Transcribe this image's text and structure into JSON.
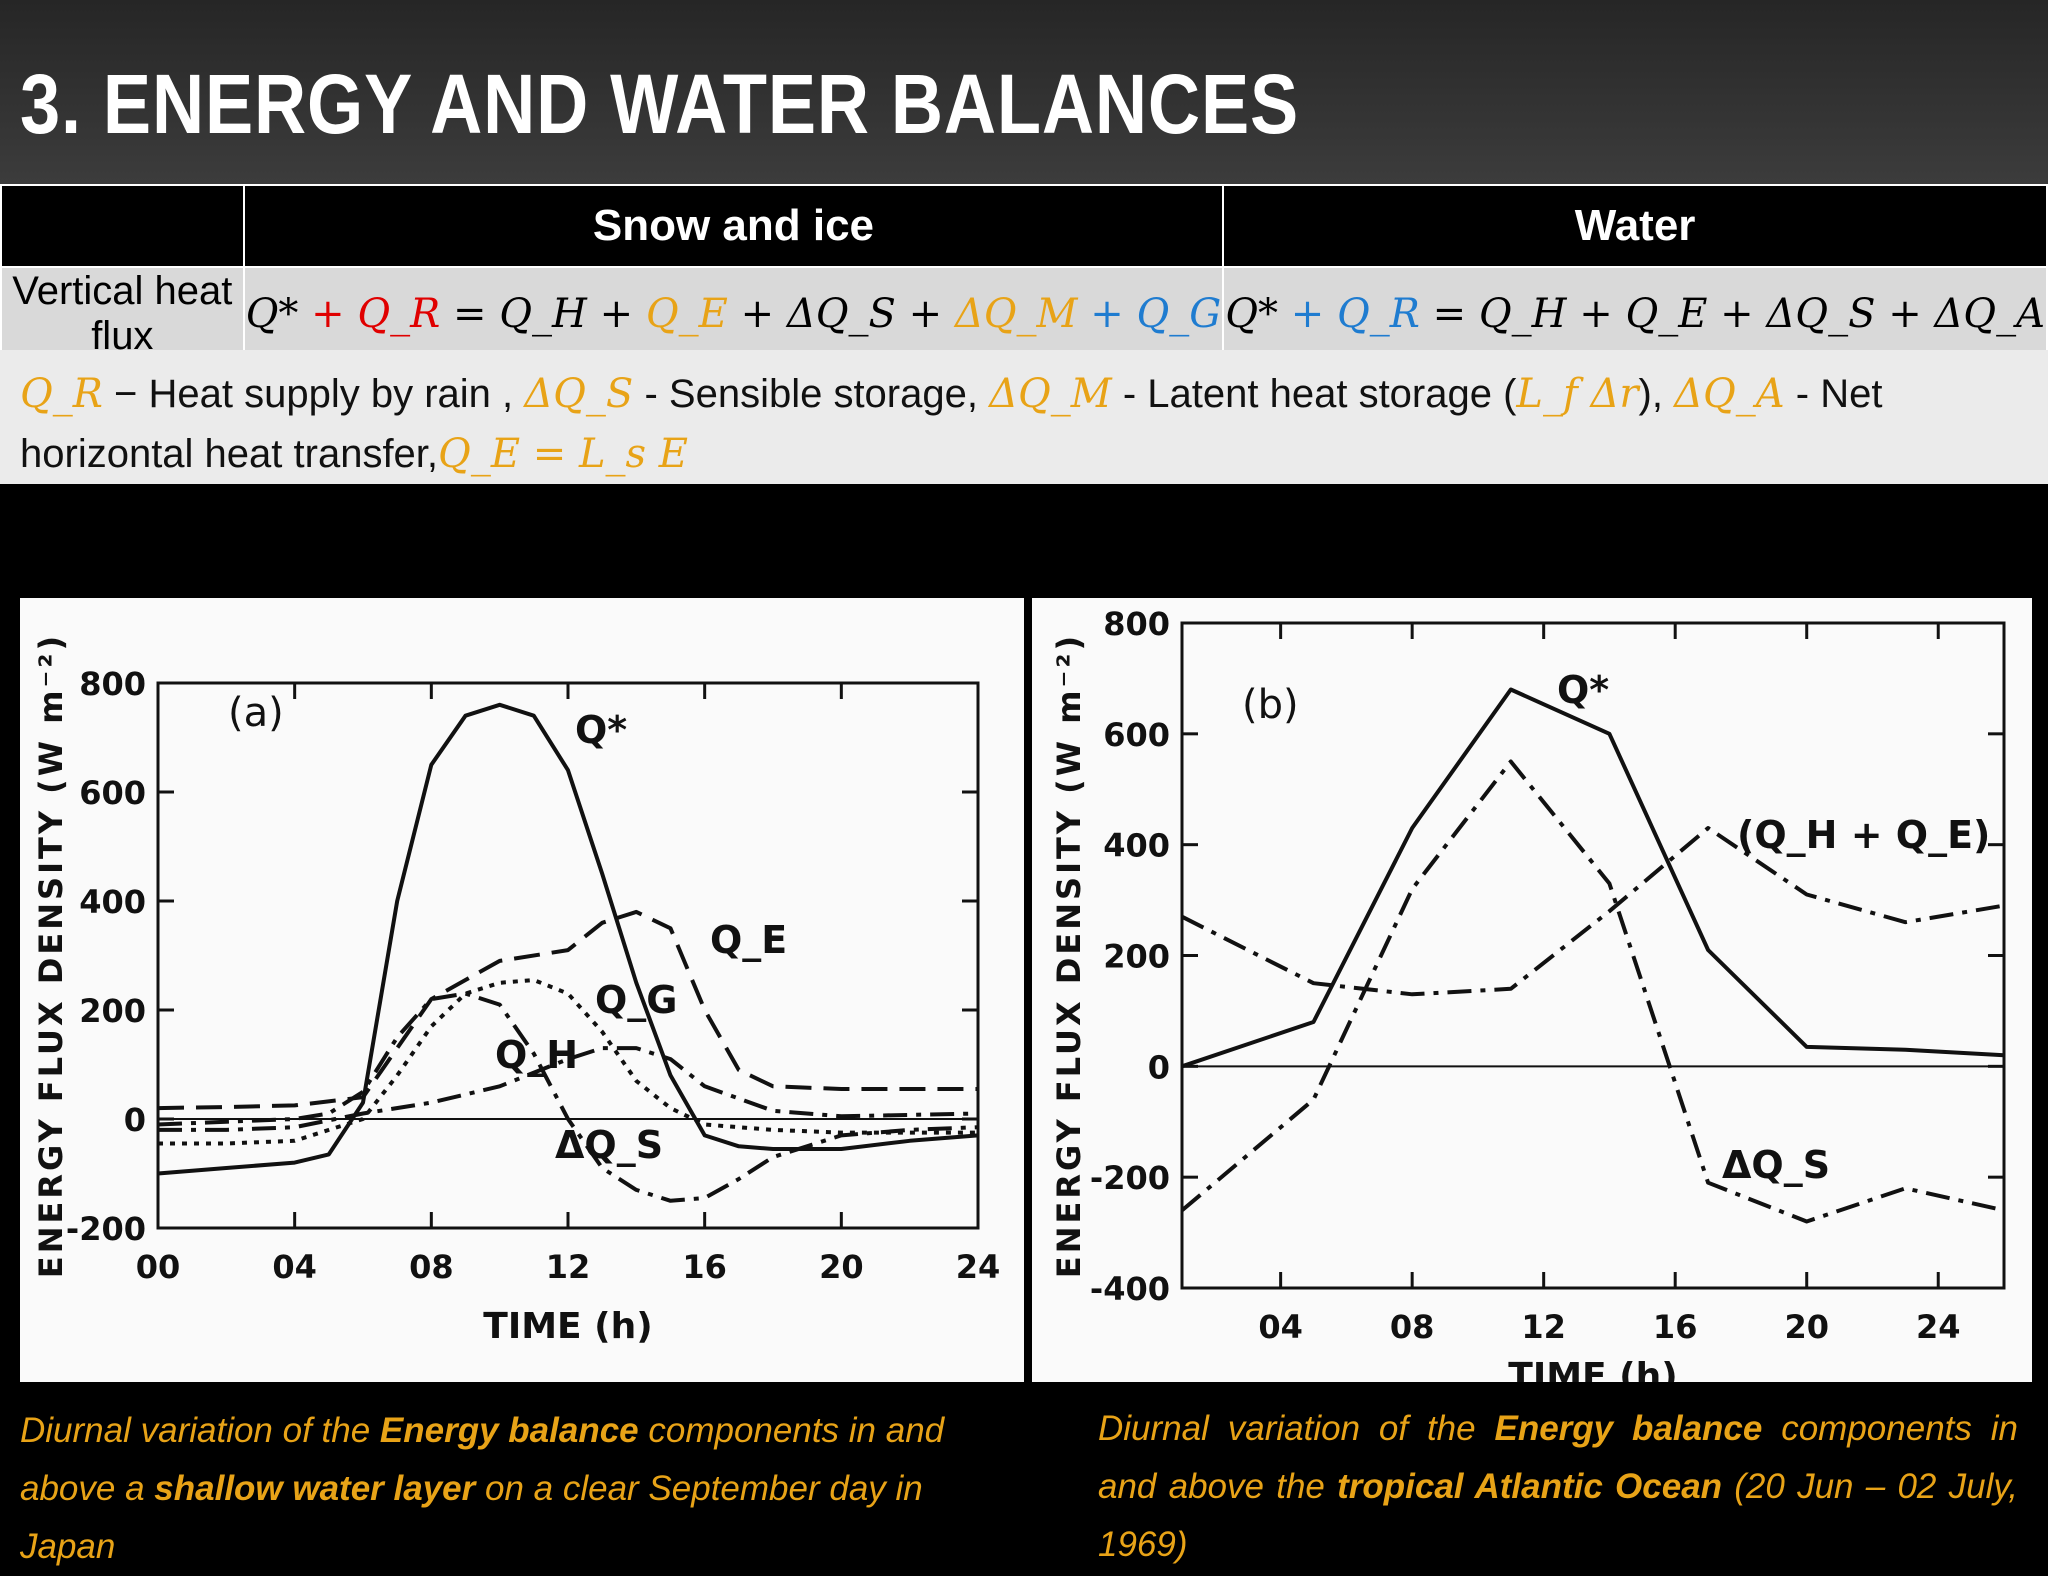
{
  "header": {
    "title": "3. ENERGY AND WATER BALANCES"
  },
  "table": {
    "col1": "Snow and ice",
    "col2": "Water",
    "row_label": "Vertical heat flux",
    "eq1": {
      "p1": "Q*",
      "p2": " + ",
      "p3": "Q_R",
      "p4": " = Q_H + ",
      "p5": "Q_E",
      "p6": " + ΔQ_S + ",
      "p7": "ΔQ_M",
      "p8": " + ",
      "p9": "Q_G"
    },
    "eq2": {
      "p1": "Q*",
      "p2": " + ",
      "p3": "Q_R",
      "p4": " = Q_H + Q_E + ΔQ_S + ΔQ_A"
    }
  },
  "legend": {
    "qr": "Q_R",
    "qr_text": " − Heat supply by rain ,   ",
    "dqs": "ΔQ_S",
    "dqs_text": " - Sensible storage, ",
    "dqm": "ΔQ_M",
    "dqm_text": " - Latent heat storage (",
    "lf": "L_f Δr",
    "close": "), ",
    "dqa": "ΔQ_A",
    "dqa_text": " - Net horizontal heat transfer,",
    "qe": "Q_E = L_s E"
  },
  "colors": {
    "red": "#e00000",
    "orange": "#e8a317",
    "blue": "#1f7cd0"
  },
  "chart_data": [
    {
      "type": "line",
      "panel_label": "(a)",
      "xlabel": "TIME (h)",
      "ylabel": "ENERGY FLUX DENSITY (W m⁻²)",
      "xlim": [
        0,
        24
      ],
      "ylim": [
        -200,
        800
      ],
      "x_ticks": [
        "00",
        "04",
        "08",
        "12",
        "16",
        "20",
        "24"
      ],
      "y_ticks": [
        "-200",
        "0",
        "200",
        "400",
        "600",
        "800"
      ],
      "series": [
        {
          "name": "Q*",
          "style": "solid",
          "x": [
            0,
            2,
            4,
            5,
            6,
            7,
            8,
            9,
            10,
            11,
            12,
            13,
            14,
            15,
            16,
            17,
            18,
            20,
            22,
            24
          ],
          "y": [
            -100,
            -90,
            -80,
            -65,
            30,
            400,
            650,
            740,
            760,
            740,
            640,
            450,
            250,
            80,
            -30,
            -50,
            -55,
            -55,
            -40,
            -30
          ]
        },
        {
          "name": "Q_E",
          "style": "dash",
          "x": [
            0,
            2,
            4,
            6,
            8,
            10,
            12,
            13,
            14,
            15,
            16,
            17,
            18,
            20,
            22,
            24
          ],
          "y": [
            20,
            22,
            25,
            40,
            220,
            290,
            310,
            360,
            380,
            350,
            200,
            90,
            60,
            55,
            55,
            55
          ]
        },
        {
          "name": "Q_G",
          "style": "dot",
          "x": [
            0,
            2,
            4,
            6,
            7,
            8,
            9,
            10,
            11,
            12,
            13,
            14,
            15,
            16,
            18,
            20,
            24
          ],
          "y": [
            -45,
            -45,
            -40,
            0,
            80,
            170,
            230,
            250,
            255,
            230,
            160,
            70,
            20,
            -10,
            -20,
            -25,
            -25
          ]
        },
        {
          "name": "Q_H",
          "style": "dashdot",
          "x": [
            0,
            2,
            4,
            6,
            8,
            10,
            12,
            13,
            14,
            15,
            16,
            18,
            20,
            24
          ],
          "y": [
            -20,
            -20,
            -15,
            10,
            30,
            60,
            110,
            130,
            130,
            110,
            60,
            15,
            5,
            10
          ]
        },
        {
          "name": "ΔQ_S",
          "style": "dashdot",
          "x": [
            0,
            2,
            4,
            5,
            6,
            7,
            8,
            9,
            10,
            11,
            12,
            13,
            14,
            15,
            16,
            17,
            18,
            20,
            22,
            24
          ],
          "y": [
            -10,
            -5,
            0,
            10,
            50,
            150,
            220,
            230,
            210,
            120,
            0,
            -90,
            -130,
            -150,
            -145,
            -110,
            -70,
            -30,
            -20,
            -15
          ]
        }
      ],
      "labels": {
        "qstar": "Q*",
        "qe": "Q_E",
        "qg": "Q_G",
        "qh": "Q_H",
        "dqs": "ΔQ_S"
      }
    },
    {
      "type": "line",
      "panel_label": "(b)",
      "xlabel": "TIME (h)",
      "ylabel": "ENERGY FLUX DENSITY (W m⁻²)",
      "xlim": [
        1,
        26
      ],
      "ylim": [
        -400,
        800
      ],
      "x_ticks": [
        "04",
        "08",
        "12",
        "16",
        "20",
        "24"
      ],
      "y_ticks": [
        "-400",
        "-200",
        "0",
        "200",
        "400",
        "600",
        "800"
      ],
      "series": [
        {
          "name": "Q*",
          "style": "solid",
          "x": [
            1,
            5,
            8,
            11,
            14,
            17,
            20,
            23,
            26
          ],
          "y": [
            0,
            80,
            430,
            680,
            600,
            210,
            35,
            30,
            20
          ]
        },
        {
          "name": "(Q_H + Q_E)",
          "style": "dashdot",
          "x": [
            1,
            5,
            8,
            11,
            14,
            17,
            20,
            23,
            26
          ],
          "y": [
            270,
            150,
            130,
            140,
            280,
            430,
            310,
            260,
            290
          ]
        },
        {
          "name": "ΔQ_S",
          "style": "dashdot",
          "x": [
            1,
            5,
            8,
            11,
            14,
            17,
            20,
            23,
            26
          ],
          "y": [
            -260,
            -60,
            320,
            550,
            330,
            -210,
            -280,
            -220,
            -260
          ]
        }
      ],
      "labels": {
        "qstar": "Q*",
        "qhqe": "(Q_H + Q_E)",
        "dqs": "ΔQ_S"
      }
    }
  ],
  "captions": {
    "left": {
      "t1": "Diurnal variation of the ",
      "b1": "Energy balance",
      "t2": " components in and above a ",
      "b2": "shallow water layer",
      "t3": " on a clear September day in Japan"
    },
    "right": {
      "t1": "Diurnal variation of the ",
      "b1": "Energy balance",
      "t2": " components in and above the ",
      "b2": "tropical Atlantic Ocean",
      "t3": " (20 Jun – 02 July, 1969)"
    }
  }
}
